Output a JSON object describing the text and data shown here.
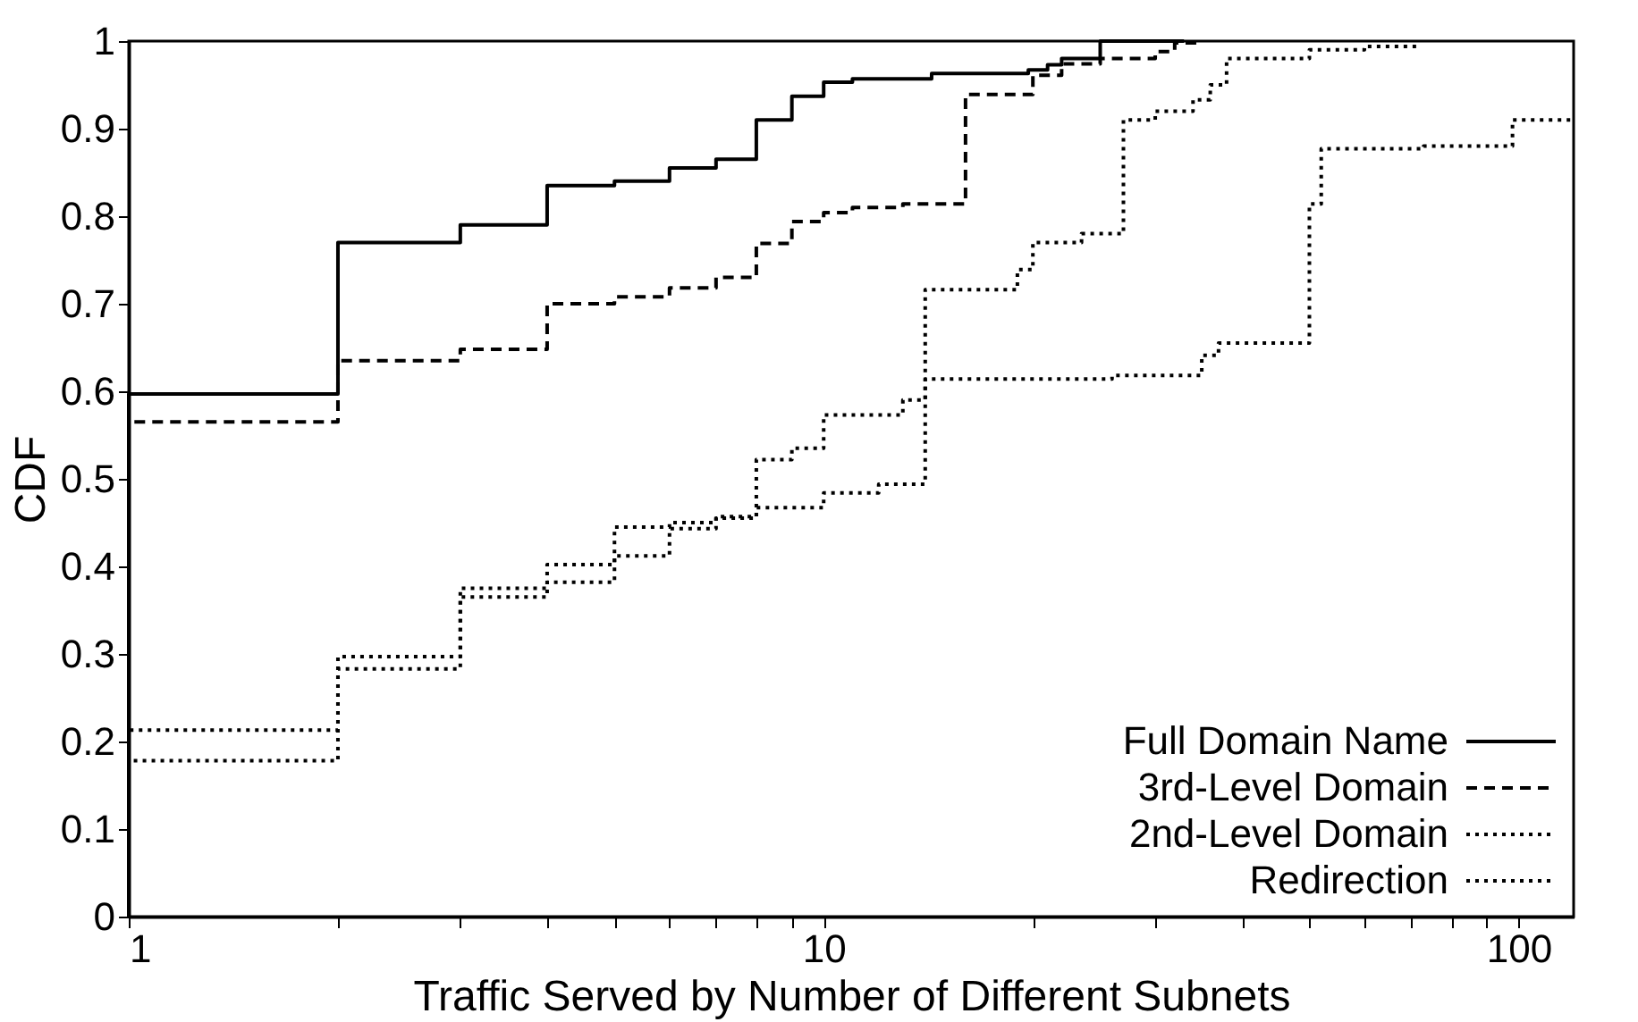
{
  "chart_data": {
    "type": "step",
    "xlabel": "Traffic Served by Number of Different Subnets",
    "ylabel": "CDF",
    "log": "x",
    "grid": false,
    "legend": "bottom right",
    "xlim": [
      1,
      120
    ],
    "ylim": [
      0,
      1
    ],
    "xticks": [
      1,
      {
        "value": 2,
        "label": null
      },
      {
        "value": 3,
        "label": null
      },
      {
        "value": 4,
        "label": null
      },
      {
        "value": 5,
        "label": null
      },
      {
        "value": 6,
        "label": null
      },
      {
        "value": 7,
        "label": null
      },
      {
        "value": 8,
        "label": null
      },
      {
        "value": 9,
        "label": null
      },
      10,
      {
        "value": 20,
        "label": null
      },
      {
        "value": 30,
        "label": null
      },
      {
        "value": 40,
        "label": null
      },
      {
        "value": 50,
        "label": null
      },
      {
        "value": 60,
        "label": null
      },
      {
        "value": 70,
        "label": null
      },
      {
        "value": 80,
        "label": null
      },
      {
        "value": 90,
        "label": null
      },
      100
    ],
    "yticks": [
      0,
      0.1,
      0.2,
      0.3,
      0.4,
      0.5,
      0.6,
      0.7,
      0.8,
      0.9,
      1
    ],
    "series": [
      {
        "name": "Full Domain Name",
        "color": "#000000",
        "line_style": "solid",
        "x": [
          1,
          1,
          2,
          3,
          4,
          5,
          6,
          7,
          8,
          9,
          10,
          11,
          14.3,
          19.7,
          21,
          22,
          25,
          33
        ],
        "values": [
          0,
          0.597,
          0.77,
          0.79,
          0.835,
          0.84,
          0.855,
          0.865,
          0.91,
          0.937,
          0.953,
          0.957,
          0.963,
          0.967,
          0.973,
          0.98,
          1.0,
          1.0
        ]
      },
      {
        "name": "3rd-Level Domain",
        "color": "#000000",
        "line_style": "dashed",
        "x": [
          1,
          1,
          2,
          3,
          4,
          5,
          6,
          7,
          8,
          9,
          10,
          11,
          13,
          16,
          20,
          22,
          25,
          30,
          32,
          35
        ],
        "values": [
          0,
          0.565,
          0.635,
          0.648,
          0.7,
          0.708,
          0.718,
          0.73,
          0.769,
          0.794,
          0.804,
          0.81,
          0.814,
          0.939,
          0.961,
          0.974,
          0.98,
          0.988,
          0.998,
          0.998
        ]
      },
      {
        "name": "2nd-Level Domain",
        "color": "#000000",
        "line_style": "dotted",
        "x": [
          1,
          1,
          2,
          3,
          4,
          5,
          6,
          7,
          8,
          9,
          10,
          13,
          14,
          19,
          20,
          23.5,
          27,
          30,
          34,
          36,
          38,
          50,
          60,
          72
        ],
        "values": [
          0,
          0.213,
          0.297,
          0.365,
          0.382,
          0.412,
          0.443,
          0.455,
          0.522,
          0.535,
          0.573,
          0.59,
          0.716,
          0.739,
          0.77,
          0.78,
          0.91,
          0.92,
          0.933,
          0.95,
          0.98,
          0.99,
          0.994,
          0.994
        ]
      },
      {
        "name": "Redirection",
        "color": "#000000",
        "line_style": "dotted",
        "x": [
          1,
          1,
          2,
          3,
          4,
          5,
          6,
          7,
          8,
          10,
          12,
          14,
          26,
          35,
          37,
          50,
          52,
          73,
          98,
          120
        ],
        "values": [
          0,
          0.178,
          0.283,
          0.375,
          0.402,
          0.445,
          0.45,
          0.457,
          0.467,
          0.484,
          0.494,
          0.614,
          0.618,
          0.641,
          0.655,
          0.814,
          0.877,
          0.88,
          0.91,
          0.91
        ]
      }
    ]
  }
}
